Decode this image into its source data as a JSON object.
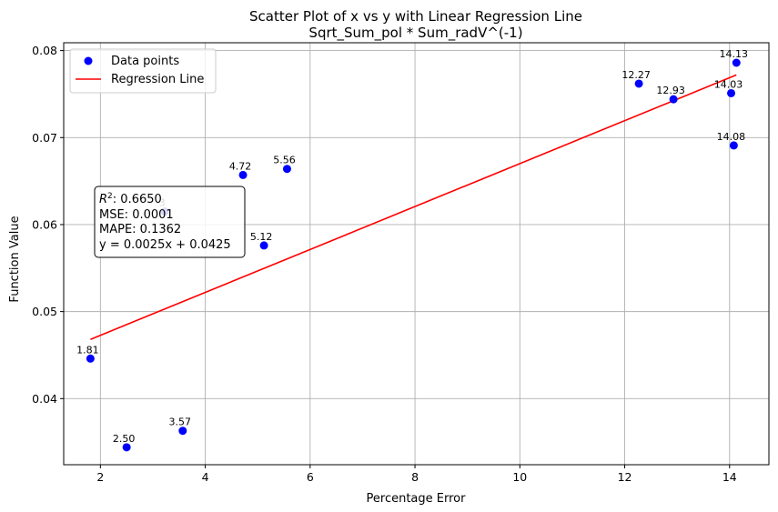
{
  "chart_data": {
    "type": "scatter",
    "title": "Scatter Plot of x vs y with Linear Regression Line",
    "subtitle": "Sqrt_Sum_pol * Sum_radV^(-1)",
    "xlabel": "Percentage Error",
    "ylabel": "Function Value",
    "xlim": [
      1.3,
      14.75
    ],
    "ylim": [
      0.0324,
      0.0809
    ],
    "xticks": [
      2,
      4,
      6,
      8,
      10,
      12,
      14
    ],
    "xtick_labels": [
      "2",
      "4",
      "6",
      "8",
      "10",
      "12",
      "14"
    ],
    "yticks": [
      0.04,
      0.05,
      0.06,
      0.07,
      0.08
    ],
    "ytick_labels": [
      "0.04",
      "0.05",
      "0.06",
      "0.07",
      "0.08"
    ],
    "grid": true,
    "legend_position": "top-left",
    "series": [
      {
        "name": "Data points",
        "kind": "scatter",
        "color": "#0000ff",
        "points": [
          {
            "x": 1.81,
            "y": 0.0446,
            "label": "1.81"
          },
          {
            "x": 2.5,
            "y": 0.0344,
            "label": "2.50"
          },
          {
            "x": 3.23,
            "y": 0.0615,
            "label": "3"
          },
          {
            "x": 3.57,
            "y": 0.0363,
            "label": "3.57"
          },
          {
            "x": 4.72,
            "y": 0.0657,
            "label": "4.72"
          },
          {
            "x": 5.12,
            "y": 0.0576,
            "label": "5.12"
          },
          {
            "x": 5.56,
            "y": 0.0664,
            "label": "5.56"
          },
          {
            "x": 12.27,
            "y": 0.0762,
            "label": "12.27"
          },
          {
            "x": 12.93,
            "y": 0.0744,
            "label": "12.93"
          },
          {
            "x": 14.03,
            "y": 0.0751,
            "label": "14.03"
          },
          {
            "x": 14.08,
            "y": 0.0691,
            "label": "14.08"
          },
          {
            "x": 14.13,
            "y": 0.0786,
            "label": "14.13"
          }
        ]
      },
      {
        "name": "Regression Line",
        "kind": "line",
        "color": "#ff0000",
        "x": [
          1.81,
          14.13
        ],
        "y": [
          0.0468,
          0.0772
        ]
      }
    ],
    "stats_box": {
      "r2_prefix": "R",
      "r2_exponent": "2",
      "r2_value": ": 0.6650",
      "mse": "MSE: 0.0001",
      "mape": "MAPE: 0.1362",
      "equation": "y = 0.0025x + 0.0425"
    }
  }
}
